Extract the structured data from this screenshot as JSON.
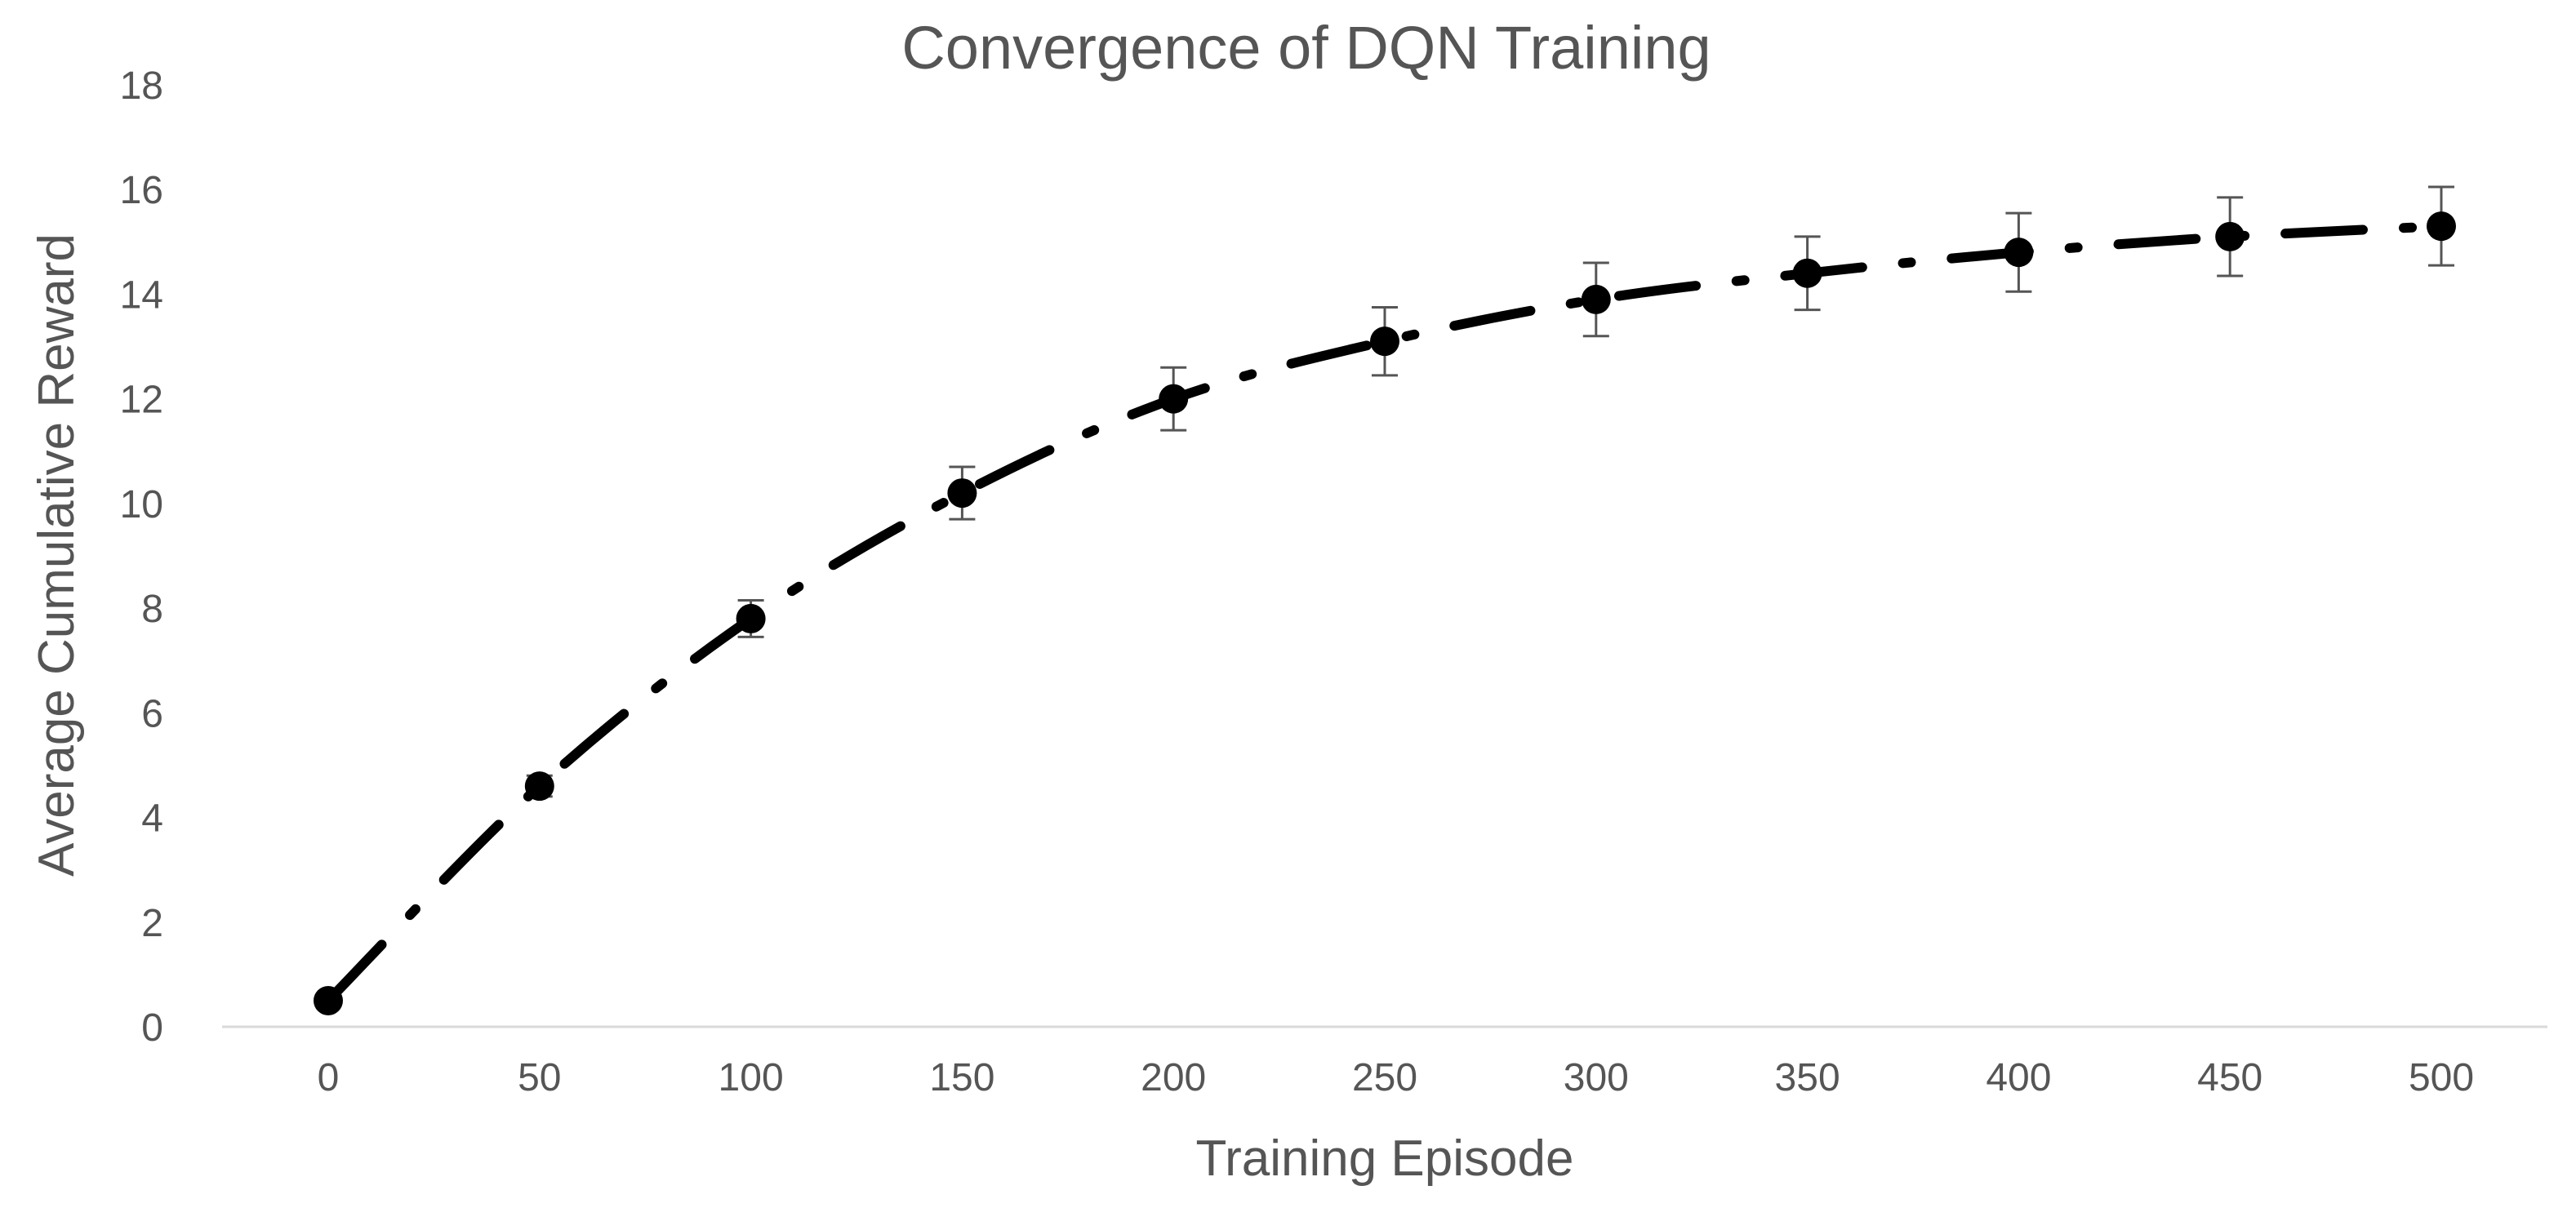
{
  "chart_data": {
    "type": "line",
    "title": "Convergence of DQN Training",
    "xlabel": "Training Episode",
    "ylabel": "Average Cumulative Reward",
    "xlim": [
      0,
      500
    ],
    "ylim": [
      0,
      18
    ],
    "x_ticks": [
      "0",
      "50",
      "100",
      "150",
      "200",
      "250",
      "300",
      "350",
      "400",
      "450",
      "500"
    ],
    "y_ticks": [
      "0",
      "2",
      "4",
      "6",
      "8",
      "10",
      "12",
      "14",
      "16",
      "18"
    ],
    "grid": false,
    "legend": "none",
    "line_style": "dash-dot",
    "line_color": "#000000",
    "series": [
      {
        "x": [
          0,
          50,
          100,
          150,
          200,
          250,
          300,
          350,
          400,
          450,
          500
        ],
        "values": [
          0.5,
          4.6,
          7.8,
          10.2,
          12.0,
          13.1,
          13.9,
          14.4,
          14.8,
          15.1,
          15.3
        ],
        "error": [
          0.1,
          0.2,
          0.35,
          0.5,
          0.6,
          0.65,
          0.7,
          0.7,
          0.75,
          0.75,
          0.75
        ]
      }
    ]
  }
}
